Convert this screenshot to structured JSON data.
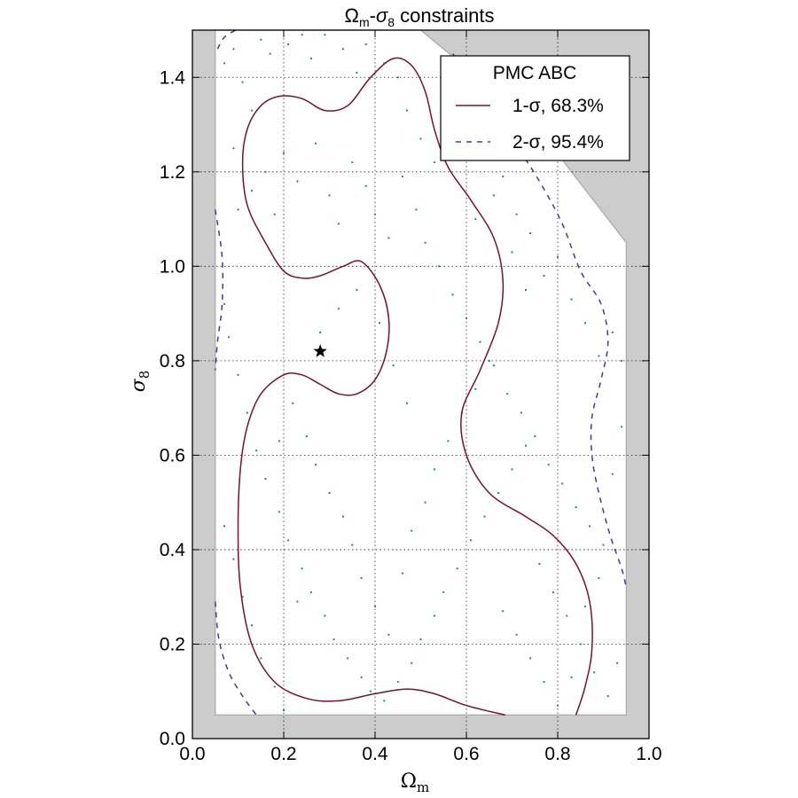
{
  "chart_data": {
    "type": "scatter",
    "title": "Ωm-σ8 constraints",
    "title_parts": {
      "omega": "Ω",
      "omega_sub": "m",
      "dash": "-",
      "sigma": "σ",
      "sigma_sub": "8",
      "rest": " constraints"
    },
    "xlabel": "Ωm",
    "xlabel_parts": {
      "symbol": "Ω",
      "sub": "m"
    },
    "ylabel": "σ8",
    "ylabel_parts": {
      "symbol": "σ",
      "sub": "8"
    },
    "xlim": [
      0.0,
      1.0
    ],
    "ylim": [
      0.0,
      1.5
    ],
    "xticks": [
      0.0,
      0.2,
      0.4,
      0.6,
      0.8,
      1.0
    ],
    "xtick_labels": [
      "0.0",
      "0.2",
      "0.4",
      "0.6",
      "0.8",
      "1.0"
    ],
    "yticks": [
      0.0,
      0.2,
      0.4,
      0.6,
      0.8,
      1.0,
      1.2,
      1.4
    ],
    "ytick_labels": [
      "0.0",
      "0.2",
      "0.4",
      "0.6",
      "0.8",
      "1.0",
      "1.2",
      "1.4"
    ],
    "grid": true,
    "legend": {
      "title": "PMC ABC",
      "placement": "upper right",
      "entries": [
        {
          "label": "1-σ, 68.3%",
          "style": "solid",
          "color": "#7a1030"
        },
        {
          "label": "2-σ, 95.4%",
          "style": "dashed",
          "color": "#3a3f8f"
        }
      ]
    },
    "colors": {
      "prior_excluded": "#cccccc",
      "one_sigma": "#7a1030",
      "two_sigma": "#3a3f8f",
      "particles": "#1e8a7a",
      "true_value": "#000000"
    },
    "prior_region": [
      [
        0.05,
        0.05
      ],
      [
        0.95,
        0.05
      ],
      [
        0.95,
        1.05
      ],
      [
        0.75,
        1.3
      ],
      [
        0.5,
        1.5
      ],
      [
        0.05,
        1.5
      ]
    ],
    "true_value": {
      "x": 0.28,
      "y": 0.82
    },
    "series": [
      {
        "name": "1-σ, 68.3%",
        "style": "solid",
        "points": [
          [
            0.685,
            0.05
          ],
          [
            0.6,
            0.07
          ],
          [
            0.53,
            0.095
          ],
          [
            0.47,
            0.105
          ],
          [
            0.4,
            0.095
          ],
          [
            0.32,
            0.08
          ],
          [
            0.25,
            0.085
          ],
          [
            0.18,
            0.12
          ],
          [
            0.13,
            0.2
          ],
          [
            0.105,
            0.32
          ],
          [
            0.1,
            0.45
          ],
          [
            0.105,
            0.57
          ],
          [
            0.12,
            0.66
          ],
          [
            0.15,
            0.73
          ],
          [
            0.2,
            0.77
          ],
          [
            0.24,
            0.77
          ],
          [
            0.28,
            0.75
          ],
          [
            0.32,
            0.73
          ],
          [
            0.36,
            0.73
          ],
          [
            0.4,
            0.76
          ],
          [
            0.425,
            0.82
          ],
          [
            0.43,
            0.89
          ],
          [
            0.41,
            0.96
          ],
          [
            0.37,
            1.01
          ],
          [
            0.33,
            1.0
          ],
          [
            0.28,
            0.98
          ],
          [
            0.24,
            0.975
          ],
          [
            0.2,
            0.99
          ],
          [
            0.16,
            1.05
          ],
          [
            0.12,
            1.13
          ],
          [
            0.11,
            1.22
          ],
          [
            0.12,
            1.29
          ],
          [
            0.15,
            1.34
          ],
          [
            0.19,
            1.36
          ],
          [
            0.24,
            1.355
          ],
          [
            0.29,
            1.33
          ],
          [
            0.34,
            1.34
          ],
          [
            0.39,
            1.4
          ],
          [
            0.44,
            1.44
          ],
          [
            0.48,
            1.425
          ],
          [
            0.51,
            1.37
          ],
          [
            0.53,
            1.29
          ],
          [
            0.56,
            1.21
          ],
          [
            0.61,
            1.14
          ],
          [
            0.66,
            1.06
          ],
          [
            0.68,
            0.97
          ],
          [
            0.67,
            0.88
          ],
          [
            0.63,
            0.78
          ],
          [
            0.59,
            0.69
          ],
          [
            0.6,
            0.6
          ],
          [
            0.65,
            0.52
          ],
          [
            0.73,
            0.47
          ],
          [
            0.79,
            0.43
          ],
          [
            0.84,
            0.37
          ],
          [
            0.87,
            0.29
          ],
          [
            0.875,
            0.19
          ],
          [
            0.86,
            0.11
          ],
          [
            0.84,
            0.05
          ]
        ]
      },
      {
        "name": "2-σ, 95.4%",
        "style": "dashed",
        "segments": [
          [
            [
              0.05,
              1.12
            ],
            [
              0.065,
              1.02
            ],
            [
              0.065,
              0.92
            ],
            [
              0.055,
              0.84
            ],
            [
              0.05,
              0.78
            ]
          ],
          [
            [
              0.05,
              0.29
            ],
            [
              0.058,
              0.21
            ],
            [
              0.08,
              0.14
            ],
            [
              0.11,
              0.09
            ],
            [
              0.14,
              0.05
            ]
          ],
          [
            [
              0.055,
              1.46
            ],
            [
              0.07,
              1.485
            ],
            [
              0.095,
              1.5
            ]
          ],
          [
            [
              0.57,
              1.45
            ],
            [
              0.64,
              1.36
            ],
            [
              0.7,
              1.27
            ],
            [
              0.76,
              1.18
            ],
            [
              0.81,
              1.09
            ],
            [
              0.85,
              0.99
            ],
            [
              0.895,
              0.92
            ],
            [
              0.91,
              0.84
            ],
            [
              0.895,
              0.76
            ],
            [
              0.875,
              0.68
            ],
            [
              0.875,
              0.6
            ],
            [
              0.89,
              0.52
            ],
            [
              0.915,
              0.43
            ],
            [
              0.94,
              0.36
            ],
            [
              0.95,
              0.32
            ]
          ]
        ]
      }
    ],
    "particles": [
      [
        0.07,
        1.43
      ],
      [
        0.09,
        1.46
      ],
      [
        0.11,
        1.39
      ],
      [
        0.13,
        1.33
      ],
      [
        0.15,
        1.48
      ],
      [
        0.17,
        1.45
      ],
      [
        0.21,
        1.47
      ],
      [
        0.24,
        1.49
      ],
      [
        0.26,
        1.44
      ],
      [
        0.29,
        1.49
      ],
      [
        0.33,
        1.46
      ],
      [
        0.36,
        1.41
      ],
      [
        0.38,
        1.47
      ],
      [
        0.42,
        1.43
      ],
      [
        0.45,
        1.4
      ],
      [
        0.47,
        1.33
      ],
      [
        0.5,
        1.27
      ],
      [
        0.53,
        1.22
      ],
      [
        0.56,
        1.31
      ],
      [
        0.58,
        1.36
      ],
      [
        0.61,
        1.3
      ],
      [
        0.64,
        1.24
      ],
      [
        0.68,
        1.19
      ],
      [
        0.71,
        1.11
      ],
      [
        0.74,
        1.07
      ],
      [
        0.77,
        0.98
      ],
      [
        0.8,
        1.02
      ],
      [
        0.83,
        0.93
      ],
      [
        0.86,
        0.88
      ],
      [
        0.89,
        0.81
      ],
      [
        0.92,
        0.86
      ],
      [
        0.94,
        0.8
      ],
      [
        0.09,
        1.25
      ],
      [
        0.1,
        1.12
      ],
      [
        0.13,
        1.16
      ],
      [
        0.16,
        1.2
      ],
      [
        0.18,
        1.11
      ],
      [
        0.2,
        1.24
      ],
      [
        0.23,
        1.18
      ],
      [
        0.27,
        1.26
      ],
      [
        0.3,
        1.15
      ],
      [
        0.32,
        1.09
      ],
      [
        0.35,
        1.22
      ],
      [
        0.38,
        1.17
      ],
      [
        0.4,
        1.11
      ],
      [
        0.43,
        1.06
      ],
      [
        0.46,
        1.19
      ],
      [
        0.49,
        1.12
      ],
      [
        0.51,
        1.05
      ],
      [
        0.54,
        1.0
      ],
      [
        0.57,
        0.94
      ],
      [
        0.6,
        0.89
      ],
      [
        0.63,
        0.84
      ],
      [
        0.66,
        0.79
      ],
      [
        0.69,
        0.73
      ],
      [
        0.72,
        0.69
      ],
      [
        0.75,
        0.64
      ],
      [
        0.78,
        0.58
      ],
      [
        0.81,
        0.54
      ],
      [
        0.84,
        0.49
      ],
      [
        0.87,
        0.45
      ],
      [
        0.9,
        0.41
      ],
      [
        0.07,
        0.92
      ],
      [
        0.08,
        0.85
      ],
      [
        0.1,
        0.77
      ],
      [
        0.12,
        0.69
      ],
      [
        0.14,
        0.61
      ],
      [
        0.16,
        0.55
      ],
      [
        0.19,
        0.48
      ],
      [
        0.21,
        0.42
      ],
      [
        0.24,
        0.36
      ],
      [
        0.26,
        0.31
      ],
      [
        0.29,
        0.26
      ],
      [
        0.31,
        0.21
      ],
      [
        0.34,
        0.17
      ],
      [
        0.37,
        0.13
      ],
      [
        0.39,
        0.1
      ],
      [
        0.42,
        0.08
      ],
      [
        0.45,
        0.12
      ],
      [
        0.48,
        0.16
      ],
      [
        0.5,
        0.21
      ],
      [
        0.53,
        0.26
      ],
      [
        0.55,
        0.31
      ],
      [
        0.58,
        0.36
      ],
      [
        0.61,
        0.42
      ],
      [
        0.64,
        0.47
      ],
      [
        0.67,
        0.52
      ],
      [
        0.7,
        0.57
      ],
      [
        0.73,
        0.62
      ],
      [
        0.76,
        0.37
      ],
      [
        0.79,
        0.31
      ],
      [
        0.82,
        0.26
      ],
      [
        0.85,
        0.2
      ],
      [
        0.88,
        0.14
      ],
      [
        0.91,
        0.09
      ],
      [
        0.93,
        0.16
      ],
      [
        0.07,
        0.45
      ],
      [
        0.09,
        0.38
      ],
      [
        0.11,
        0.3
      ],
      [
        0.13,
        0.24
      ],
      [
        0.15,
        0.17
      ],
      [
        0.18,
        0.11
      ],
      [
        0.2,
        0.06
      ],
      [
        0.23,
        0.29
      ],
      [
        0.25,
        0.64
      ],
      [
        0.27,
        0.58
      ],
      [
        0.3,
        0.52
      ],
      [
        0.33,
        0.47
      ],
      [
        0.35,
        0.41
      ],
      [
        0.37,
        0.34
      ],
      [
        0.4,
        0.28
      ],
      [
        0.43,
        0.22
      ],
      [
        0.46,
        0.35
      ],
      [
        0.48,
        0.44
      ],
      [
        0.51,
        0.5
      ],
      [
        0.53,
        0.57
      ],
      [
        0.56,
        0.63
      ],
      [
        0.59,
        0.69
      ],
      [
        0.62,
        0.74
      ],
      [
        0.65,
        0.8
      ],
      [
        0.68,
        0.27
      ],
      [
        0.71,
        0.22
      ],
      [
        0.74,
        0.17
      ],
      [
        0.77,
        0.12
      ],
      [
        0.8,
        0.07
      ],
      [
        0.83,
        0.13
      ],
      [
        0.86,
        0.28
      ],
      [
        0.89,
        0.34
      ],
      [
        0.92,
        0.56
      ],
      [
        0.94,
        0.66
      ],
      [
        0.36,
        0.95
      ],
      [
        0.32,
        0.91
      ],
      [
        0.28,
        0.86
      ],
      [
        0.41,
        0.88
      ],
      [
        0.44,
        0.79
      ],
      [
        0.47,
        0.71
      ],
      [
        0.22,
        0.71
      ],
      [
        0.19,
        0.63
      ],
      [
        0.62,
        1.1
      ],
      [
        0.66,
        1.15
      ],
      [
        0.7,
        1.03
      ],
      [
        0.73,
        0.95
      ]
    ]
  }
}
